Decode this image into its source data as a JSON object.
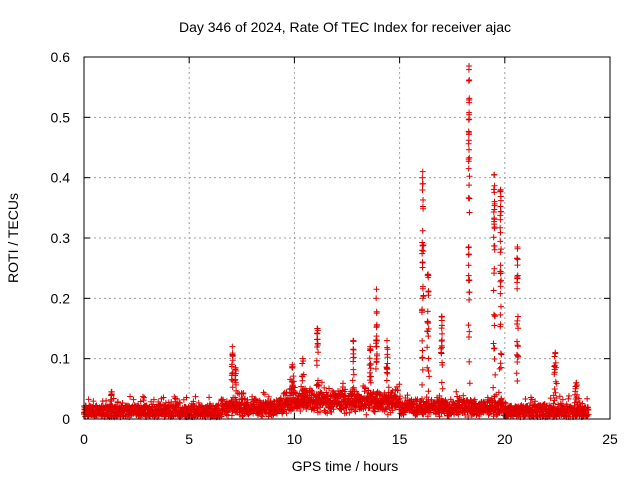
{
  "chart_data": {
    "type": "scatter",
    "title": "Day 346 of 2024, Rate Of TEC Index for receiver ajac",
    "xlabel": "GPS time / hours",
    "ylabel": "ROTI / TECUs",
    "xlim": [
      0,
      25
    ],
    "ylim": [
      0,
      0.6
    ],
    "xticks": [
      0,
      5,
      10,
      15,
      20,
      25
    ],
    "yticks": [
      0,
      0.1,
      0.2,
      0.3,
      0.4,
      0.5,
      0.6
    ],
    "xtick_labels": [
      "0",
      "5",
      "10",
      "15",
      "20",
      "25"
    ],
    "ytick_labels": [
      "0",
      "0.1",
      "0.2",
      "0.3",
      "0.4",
      "0.5",
      "0.6"
    ],
    "grid": true,
    "marker": "plus",
    "series_color": "#e00000",
    "x_range_of_data": [
      0,
      24
    ],
    "baseline_roti": 0.015,
    "features": [
      {
        "t": 1.3,
        "peak": 0.045,
        "width": 0.15
      },
      {
        "t": 7.05,
        "peak": 0.12,
        "width": 0.1
      },
      {
        "t": 7.2,
        "peak": 0.085,
        "width": 0.1
      },
      {
        "t": 9.9,
        "peak": 0.09,
        "width": 0.25
      },
      {
        "t": 10.4,
        "peak": 0.1,
        "width": 0.2
      },
      {
        "t": 11.1,
        "peak": 0.15,
        "width": 0.15
      },
      {
        "t": 12.8,
        "peak": 0.13,
        "width": 0.1
      },
      {
        "t": 13.6,
        "peak": 0.12,
        "width": 0.15
      },
      {
        "t": 13.9,
        "peak": 0.215,
        "width": 0.08
      },
      {
        "t": 14.4,
        "peak": 0.13,
        "width": 0.15
      },
      {
        "t": 16.1,
        "peak": 0.41,
        "width": 0.12
      },
      {
        "t": 16.35,
        "peak": 0.24,
        "width": 0.15
      },
      {
        "t": 17.0,
        "peak": 0.17,
        "width": 0.12
      },
      {
        "t": 18.3,
        "peak": 0.585,
        "width": 0.08
      },
      {
        "t": 19.5,
        "peak": 0.405,
        "width": 0.12
      },
      {
        "t": 19.8,
        "peak": 0.38,
        "width": 0.1
      },
      {
        "t": 20.6,
        "peak": 0.285,
        "width": 0.1
      },
      {
        "t": 22.4,
        "peak": 0.11,
        "width": 0.2
      },
      {
        "t": 23.4,
        "peak": 0.06,
        "width": 0.2
      }
    ]
  }
}
